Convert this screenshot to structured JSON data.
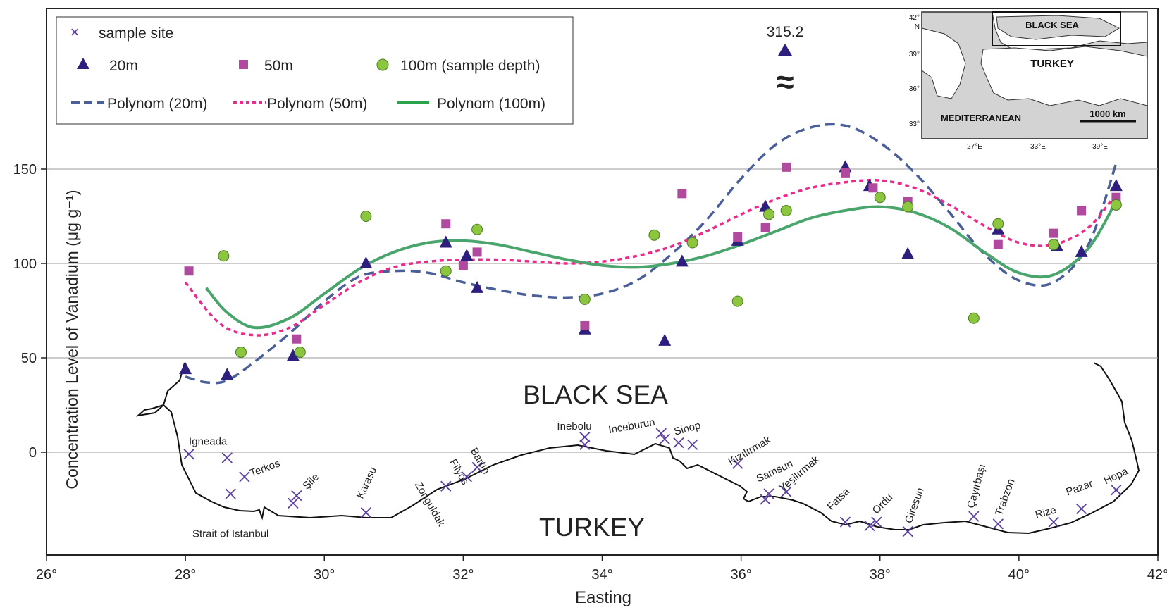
{
  "chart_data": {
    "type": "scatter",
    "xlabel": "Easting",
    "ylabel": "Concentration Level of Vanadium (μg g⁻¹)",
    "xlim": [
      26,
      42
    ],
    "ylim": [
      -52,
      235
    ],
    "xticks": [
      "26°",
      "28°",
      "30°",
      "32°",
      "34°",
      "36°",
      "38°",
      "40°",
      "42°"
    ],
    "yticks": [
      "0",
      "50",
      "100",
      "150"
    ],
    "grid": "horizontal",
    "legend_position": "top-left",
    "legend": {
      "sample_site": "sample site",
      "d20": "20m",
      "d50": "50m",
      "d100": "100m  (sample depth)",
      "p20": "Polynom (20m)",
      "p50": "Polynom (50m)",
      "p100": "Polynom (100m)"
    },
    "colors": {
      "d20": "#2e1f7e",
      "d50": "#b04a9e",
      "d100": "#8cc63f",
      "p20": "#4a5e9a",
      "p50": "#ec2a8c",
      "p100": "#4aa56c",
      "site": "#5b3fa0"
    },
    "outlier_annotation": {
      "label": "315.2",
      "x": 36.6,
      "value": 315.2,
      "break_symbol": "≈"
    },
    "series": [
      {
        "name": "20m",
        "marker": "triangle",
        "x": [
          28.0,
          28.6,
          29.55,
          30.6,
          31.75,
          32.05,
          32.2,
          33.75,
          34.9,
          35.15,
          35.95,
          36.35,
          37.5,
          37.85,
          38.4,
          39.7,
          40.55,
          40.9,
          41.4
        ],
        "y": [
          44,
          41,
          51,
          100,
          111,
          104,
          87,
          65,
          59,
          101,
          112,
          130,
          151,
          141,
          105,
          118,
          109,
          106,
          141
        ]
      },
      {
        "name": "50m",
        "marker": "square",
        "x": [
          28.05,
          29.6,
          31.75,
          32.0,
          32.2,
          33.75,
          35.15,
          35.95,
          36.35,
          36.65,
          37.5,
          37.9,
          38.4,
          39.7,
          40.5,
          40.9,
          41.4
        ],
        "y": [
          96,
          60,
          121,
          99,
          106,
          67,
          137,
          114,
          119,
          151,
          148,
          140,
          133,
          110,
          116,
          128,
          135
        ]
      },
      {
        "name": "100m",
        "marker": "circle",
        "x": [
          28.55,
          28.8,
          29.65,
          30.6,
          31.75,
          32.2,
          33.75,
          34.75,
          35.3,
          35.95,
          36.4,
          36.65,
          38.0,
          38.4,
          39.35,
          39.7,
          40.5,
          41.4
        ],
        "y": [
          104,
          53,
          53,
          125,
          96,
          118,
          81,
          115,
          111,
          80,
          126,
          128,
          135,
          130,
          71,
          121,
          110,
          131
        ]
      }
    ],
    "trendlines": [
      {
        "name": "Polynom (20m)",
        "style": "dashed",
        "x": [
          28.0,
          28.3,
          28.6,
          29.0,
          29.5,
          30.0,
          30.5,
          31.0,
          31.5,
          32.0,
          32.5,
          33.0,
          33.5,
          34.0,
          34.5,
          35.0,
          35.5,
          36.0,
          36.5,
          37.0,
          37.5,
          38.0,
          38.5,
          39.0,
          39.5,
          40.0,
          40.5,
          41.0,
          41.4
        ],
        "y": [
          40,
          37,
          38,
          48,
          63,
          80,
          93,
          96,
          95,
          90,
          86,
          83,
          82,
          84,
          91,
          105,
          123,
          145,
          163,
          172,
          173,
          164,
          148,
          127,
          105,
          91,
          90,
          110,
          153
        ]
      },
      {
        "name": "Polynom (50m)",
        "style": "dotted",
        "x": [
          28.0,
          28.5,
          29.0,
          29.5,
          30.0,
          30.5,
          31.0,
          31.5,
          32.0,
          32.5,
          33.0,
          33.5,
          34.0,
          34.5,
          35.0,
          35.5,
          36.0,
          36.5,
          37.0,
          37.5,
          38.0,
          38.5,
          39.0,
          39.5,
          40.0,
          40.5,
          41.0,
          41.4
        ],
        "y": [
          90,
          68,
          62,
          66,
          78,
          90,
          98,
          101,
          102,
          102,
          101,
          100,
          101,
          104,
          109,
          117,
          126,
          134,
          140,
          143,
          144,
          140,
          131,
          120,
          111,
          110,
          119,
          137
        ]
      },
      {
        "name": "Polynom (100m)",
        "style": "solid",
        "x": [
          28.3,
          28.6,
          29.0,
          29.5,
          30.0,
          30.5,
          31.0,
          31.5,
          32.0,
          32.5,
          33.0,
          33.5,
          34.0,
          34.5,
          35.0,
          35.5,
          36.0,
          36.5,
          37.0,
          37.5,
          38.0,
          38.5,
          39.0,
          39.5,
          40.0,
          40.5,
          41.0,
          41.4
        ],
        "y": [
          87,
          74,
          66,
          71,
          84,
          97,
          106,
          111,
          112,
          110,
          106,
          102,
          99,
          98,
          100,
          104,
          110,
          117,
          124,
          128,
          130,
          127,
          119,
          106,
          95,
          94,
          108,
          133
        ]
      }
    ],
    "sites_x": [
      28.05,
      28.6,
      28.65,
      28.85,
      29.55,
      29.6,
      30.6,
      31.75,
      32.05,
      32.2,
      33.75,
      33.75,
      34.85,
      34.9,
      35.1,
      35.3,
      35.95,
      36.35,
      36.4,
      36.65,
      37.5,
      37.85,
      37.95,
      38.4,
      39.35,
      39.7,
      40.5,
      40.9,
      41.4
    ],
    "sites_y": [
      -1,
      -3,
      -22,
      -13,
      -27,
      -23,
      -32,
      -18,
      -13,
      -8,
      8,
      4,
      10,
      7,
      5,
      4,
      -6,
      -25,
      -22,
      -21,
      -37,
      -39,
      -37,
      -42,
      -34,
      -38,
      -37,
      -30,
      -20
    ]
  },
  "map": {
    "sea_label": "BLACK SEA",
    "land_label": "TURKEY",
    "places": [
      {
        "name": "Igneada",
        "x": 28.05,
        "y": 4,
        "rot": 0
      },
      {
        "name": "Terkos",
        "x": 28.95,
        "y": -13,
        "rot": -20
      },
      {
        "name": "Şile",
        "x": 29.75,
        "y": -20,
        "rot": -45
      },
      {
        "name": "Strait of Istanbul",
        "x": 28.1,
        "y": -45,
        "rot": 0
      },
      {
        "name": "Karasu",
        "x": 30.55,
        "y": -25,
        "rot": -65
      },
      {
        "name": "Zonguldak",
        "x": 31.3,
        "y": -17,
        "rot": 60
      },
      {
        "name": "Filyos",
        "x": 31.8,
        "y": -5,
        "rot": 60
      },
      {
        "name": "Bartın",
        "x": 32.1,
        "y": 1,
        "rot": 60
      },
      {
        "name": "İnebolu",
        "x": 33.35,
        "y": 12,
        "rot": 0
      },
      {
        "name": "Inceburun",
        "x": 34.1,
        "y": 10,
        "rot": -10
      },
      {
        "name": "Sinop",
        "x": 35.05,
        "y": 9,
        "rot": -15
      },
      {
        "name": "Kızılırmak",
        "x": 35.85,
        "y": -7,
        "rot": -30
      },
      {
        "name": "Samsun",
        "x": 36.25,
        "y": -16,
        "rot": -25
      },
      {
        "name": "Yeşilırmak",
        "x": 36.6,
        "y": -21,
        "rot": -40
      },
      {
        "name": "Fatsa",
        "x": 37.3,
        "y": -31,
        "rot": -45
      },
      {
        "name": "Ordu",
        "x": 37.95,
        "y": -33,
        "rot": -45
      },
      {
        "name": "Giresun",
        "x": 38.45,
        "y": -38,
        "rot": -70
      },
      {
        "name": "Çayırbaşı",
        "x": 39.35,
        "y": -30,
        "rot": -75
      },
      {
        "name": "Trabzon",
        "x": 39.75,
        "y": -34,
        "rot": -70
      },
      {
        "name": "Rize",
        "x": 40.25,
        "y": -35,
        "rot": -15
      },
      {
        "name": "Pazar",
        "x": 40.7,
        "y": -23,
        "rot": -20
      },
      {
        "name": "Hopa",
        "x": 41.25,
        "y": -17,
        "rot": -25
      }
    ]
  },
  "inset_map": {
    "sea_label": "BLACK SEA",
    "land_label": "TURKEY",
    "south_label": "MEDITERRANEAN",
    "scale_label": "1000 km",
    "lat_labels": [
      "42°",
      "N",
      "39°",
      "36°",
      "33°"
    ],
    "lon_labels": [
      "27°E",
      "33°E",
      "39°E"
    ]
  }
}
